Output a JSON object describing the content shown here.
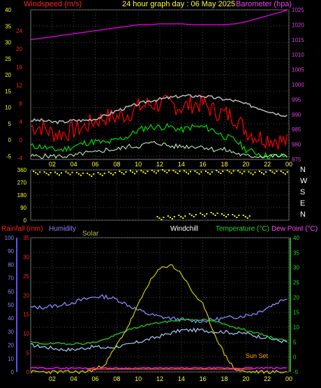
{
  "header": {
    "left_title": "Windspeed (m/s)",
    "center_title": "24 hour graph day : 06 May 2025",
    "right_title": "Barometer (hpa)"
  },
  "panel3_labels": {
    "rain": "Rainfall (mm)",
    "humidity": "Humidity",
    "solar": "Solar",
    "windchill": "Windchill",
    "temperature": "Temperature (°C)",
    "dewpoint": "Dew Point (°C)",
    "sunset": "Sun Set"
  },
  "colors": {
    "gust": "#ff0000",
    "wind": "#00dd00",
    "wind_min": "#ccffcc",
    "temp_panel1": "#bbbbbb",
    "baro": "#cc00cc",
    "winddir": "#ffff00",
    "humidity": "#8888ff",
    "temperature": "#22cc22",
    "solar": "#cccc00",
    "rain": "#ff00ff",
    "sun": "#ff8800",
    "grid": "#444444"
  },
  "chart_data": [
    {
      "type": "line",
      "title": "24 hour graph day : 06 May 2025",
      "ylabel_left": "Windspeed (m/s)",
      "ylabel_right": "Barometer (hpa)",
      "x_ticks": [
        "02",
        "04",
        "06",
        "08",
        "10",
        "12",
        "14",
        "16",
        "18",
        "20",
        "22",
        "00"
      ],
      "ylim_left": [
        -6,
        40
      ],
      "yticks_left": [
        -5,
        0,
        5,
        10,
        15,
        20,
        25,
        30,
        35,
        40
      ],
      "yticks_left_red": [
        -4,
        0,
        4,
        8,
        12,
        16,
        20,
        24
      ],
      "ylim_right": [
        975,
        1025
      ],
      "yticks_right": [
        975,
        980,
        985,
        990,
        995,
        1000,
        1005,
        1010,
        1015,
        1020,
        1025
      ],
      "x_hours": [
        0,
        1,
        2,
        3,
        4,
        5,
        6,
        7,
        8,
        9,
        10,
        11,
        12,
        13,
        14,
        15,
        16,
        17,
        18,
        19,
        20,
        21,
        22,
        23,
        24
      ],
      "series": [
        {
          "key": "baro",
          "values": [
            1015,
            1015.5,
            1016,
            1016.5,
            1017,
            1017.5,
            1018,
            1018.5,
            1019,
            1019.5,
            1020,
            1020,
            1020.3,
            1020.3,
            1020.3,
            1020,
            1020,
            1020,
            1020,
            1020.3,
            1021,
            1022,
            1023,
            1024,
            1025
          ]
        },
        {
          "key": "temp_panel1",
          "values": [
            6,
            6,
            5.5,
            5.5,
            6,
            6,
            6.5,
            7.5,
            9,
            10,
            11,
            12,
            12.5,
            13,
            13.5,
            13.5,
            13.5,
            13,
            12.5,
            12,
            11,
            10,
            9,
            8,
            7.5
          ]
        },
        {
          "key": "gust",
          "values": [
            4,
            4,
            2,
            2,
            3,
            4,
            6,
            7,
            7,
            8,
            10,
            11,
            11,
            11,
            10,
            11,
            11,
            9,
            8,
            7,
            3,
            1,
            0.5,
            0,
            -1
          ]
        },
        {
          "key": "wind",
          "values": [
            -2,
            -2,
            -3,
            -3,
            -2,
            -1,
            -0.5,
            -1,
            0,
            1,
            3,
            4,
            4,
            4,
            3,
            4,
            4,
            3,
            1,
            0,
            -3,
            -4,
            -5,
            -5,
            -5
          ]
        },
        {
          "key": "wind_min",
          "values": [
            -5,
            -5,
            -5,
            -5,
            -5,
            -4,
            -4,
            -3,
            -3,
            -2,
            -2,
            -1,
            -1,
            -2,
            -2,
            -2,
            -2,
            -3,
            -3,
            -4,
            -5,
            -5,
            -5,
            -5,
            -5
          ]
        }
      ]
    },
    {
      "type": "scatter",
      "title": "",
      "ylabel_left": "",
      "yticks_left": [
        0,
        90,
        180,
        270,
        360
      ],
      "direction_labels": [
        "N",
        "W",
        "S",
        "E",
        "N"
      ],
      "ylim_left": [
        0,
        360
      ],
      "series": [
        {
          "key": "winddir",
          "x": [
            0.5,
            1.5,
            2.5,
            3.5,
            4.5,
            5.5,
            6.5,
            7.5,
            8.5,
            9.5,
            10.5,
            11.5,
            12.5,
            13.5,
            14.5,
            15.5,
            16.5,
            17.5,
            18.5,
            19.5,
            20.5,
            21.5,
            22.5,
            23.5
          ],
          "y": [
            345,
            340,
            338,
            342,
            336,
            330,
            335,
            340,
            345,
            348,
            350,
            352,
            355,
            350,
            348,
            346,
            345,
            350,
            352,
            348,
            342,
            345,
            350,
            345
          ]
        },
        {
          "key": "winddir_south",
          "x": [
            12,
            13,
            14,
            15,
            16,
            17,
            18,
            19,
            20
          ],
          "y": [
            20,
            25,
            30,
            40,
            45,
            50,
            40,
            35,
            30
          ]
        }
      ]
    },
    {
      "type": "line",
      "title": "",
      "ylabel_left": "Rainfall (mm)",
      "ylabel_left2": "Humidity",
      "ylabel_right": "Temperature (°C)",
      "yticks_rain": [
        0,
        5,
        10,
        15,
        20,
        25,
        30,
        35
      ],
      "ylim_rain": [
        0,
        35
      ],
      "yticks_humidity": [
        0,
        10,
        20,
        30,
        40,
        50,
        60,
        70,
        80,
        90,
        100
      ],
      "ylim_humidity": [
        0,
        100
      ],
      "yticks_temp": [
        -5,
        0,
        5,
        10,
        15,
        20,
        25,
        30,
        35,
        40
      ],
      "ylim_temp": [
        -5,
        40
      ],
      "x_ticks": [
        "02",
        "04",
        "06",
        "08",
        "10",
        "12",
        "14",
        "16",
        "18",
        "20",
        "22",
        "00"
      ],
      "x_hours": [
        0,
        1,
        2,
        3,
        4,
        5,
        6,
        7,
        8,
        9,
        10,
        11,
        12,
        13,
        14,
        15,
        16,
        17,
        18,
        19,
        20,
        21,
        22,
        23,
        24
      ],
      "series": [
        {
          "key": "humidity",
          "values": [
            48,
            48,
            49,
            50,
            52,
            54,
            56,
            56,
            54,
            50,
            46,
            43,
            41,
            40,
            39,
            38,
            38,
            39,
            40,
            41,
            42,
            44,
            48,
            52,
            56
          ]
        },
        {
          "key": "temperature",
          "values": [
            5,
            4.5,
            4.5,
            4.5,
            4.5,
            4.5,
            5,
            6,
            7.5,
            9,
            10,
            11,
            11.5,
            12,
            12.5,
            12.5,
            12.5,
            12,
            11,
            10,
            9,
            8,
            7,
            6,
            5.5
          ]
        },
        {
          "key": "dewpoint",
          "values": [
            4,
            3.5,
            3,
            2.5,
            2.5,
            3,
            3.5,
            3,
            3.5,
            4,
            5,
            6,
            7,
            8,
            9,
            9,
            9,
            8.5,
            8.5,
            8,
            8,
            7,
            6.5,
            5.5,
            5
          ]
        },
        {
          "key": "solar",
          "values": [
            0,
            0,
            0,
            0,
            0,
            0,
            5,
            20,
            60,
            100,
            150,
            200,
            230,
            240,
            220,
            180,
            150,
            90,
            40,
            5,
            0,
            0,
            0,
            0,
            0
          ]
        },
        {
          "key": "rain",
          "values": [
            1,
            1,
            1,
            1,
            1,
            1,
            1,
            1,
            1,
            1,
            1,
            1,
            1,
            1,
            1,
            1,
            1,
            1,
            1,
            1,
            1,
            1,
            1,
            1,
            1
          ]
        }
      ]
    }
  ]
}
